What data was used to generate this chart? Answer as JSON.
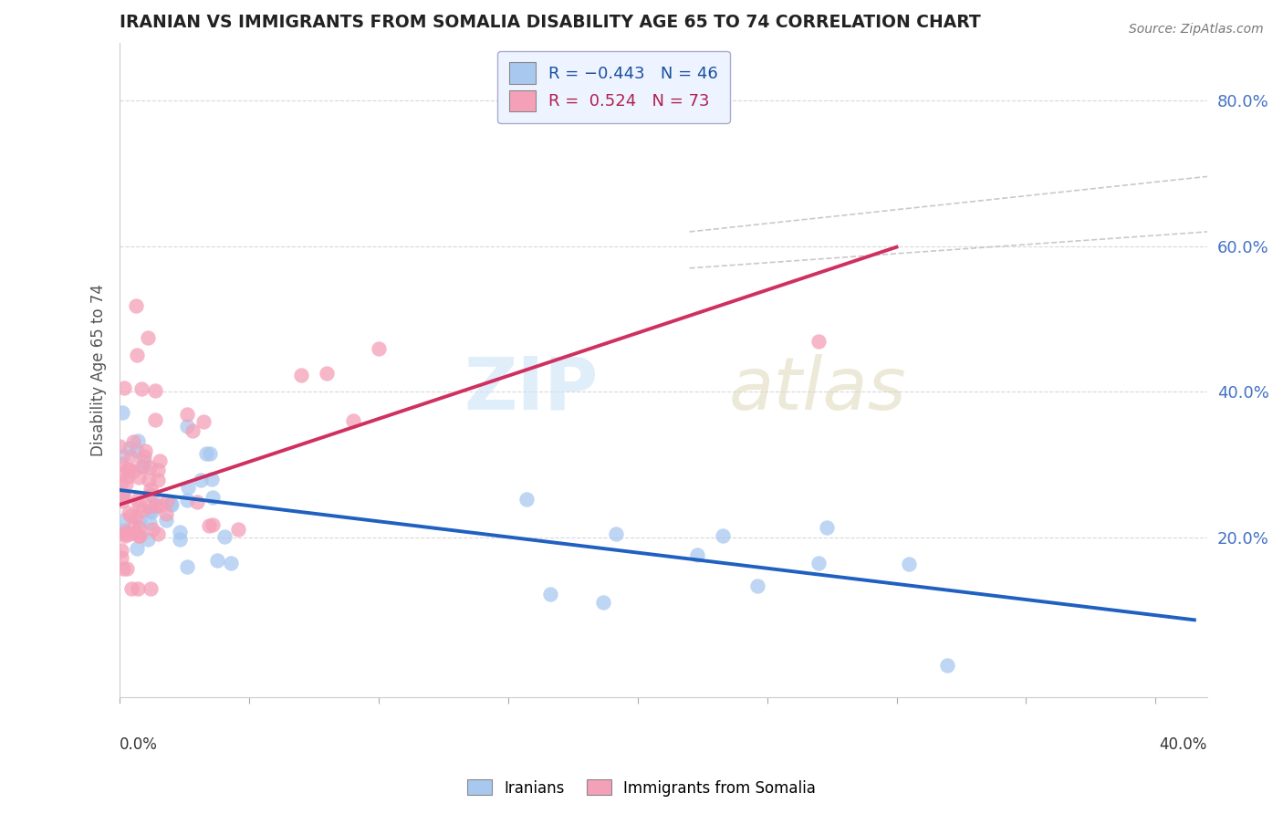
{
  "title": "IRANIAN VS IMMIGRANTS FROM SOMALIA DISABILITY AGE 65 TO 74 CORRELATION CHART",
  "source": "Source: ZipAtlas.com",
  "ylabel": "Disability Age 65 to 74",
  "xlim": [
    0.0,
    0.42
  ],
  "ylim": [
    -0.02,
    0.88
  ],
  "yticks": [
    0.2,
    0.4,
    0.6,
    0.8
  ],
  "ytick_labels": [
    "20.0%",
    "40.0%",
    "60.0%",
    "80.0%"
  ],
  "iranian_color": "#a8c8f0",
  "somalia_color": "#f4a0b8",
  "trendline_iranian_color": "#2060c0",
  "trendline_somalia_color": "#d03060",
  "ci_color": "#c0c0c0",
  "background_color": "#ffffff",
  "grid_color": "#d0d0d0",
  "legend_box_color": "#e8f0ff",
  "watermark_zip_color": "#cce4f8",
  "watermark_atlas_color": "#ddd8b8"
}
